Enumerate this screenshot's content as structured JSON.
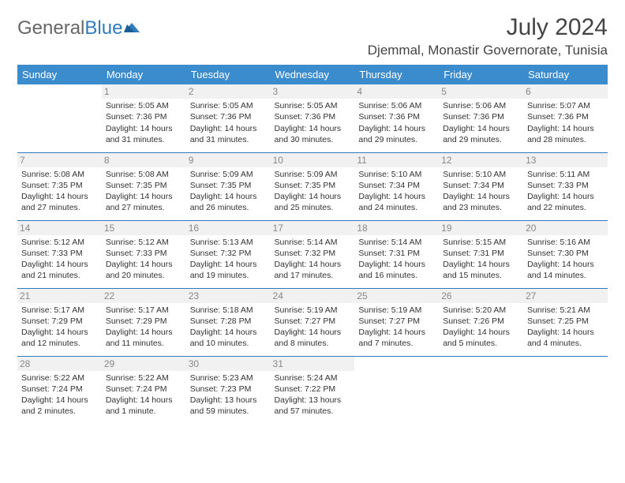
{
  "brand": {
    "part1": "General",
    "part2": "Blue"
  },
  "title": "July 2024",
  "location": "Djemmal, Monastir Governorate, Tunisia",
  "colors": {
    "header_bg": "#3b8ccc",
    "header_text": "#ffffff",
    "rule": "#2f7bbf",
    "daynum": "#888888",
    "body_text": "#333333",
    "logo_blue": "#2f7bbf",
    "logo_gray": "#666666"
  },
  "day_headers": [
    "Sunday",
    "Monday",
    "Tuesday",
    "Wednesday",
    "Thursday",
    "Friday",
    "Saturday"
  ],
  "weeks": [
    [
      {
        "n": "",
        "sr": "",
        "ss": "",
        "dl": ""
      },
      {
        "n": "1",
        "sr": "Sunrise: 5:05 AM",
        "ss": "Sunset: 7:36 PM",
        "dl": "Daylight: 14 hours and 31 minutes."
      },
      {
        "n": "2",
        "sr": "Sunrise: 5:05 AM",
        "ss": "Sunset: 7:36 PM",
        "dl": "Daylight: 14 hours and 31 minutes."
      },
      {
        "n": "3",
        "sr": "Sunrise: 5:05 AM",
        "ss": "Sunset: 7:36 PM",
        "dl": "Daylight: 14 hours and 30 minutes."
      },
      {
        "n": "4",
        "sr": "Sunrise: 5:06 AM",
        "ss": "Sunset: 7:36 PM",
        "dl": "Daylight: 14 hours and 29 minutes."
      },
      {
        "n": "5",
        "sr": "Sunrise: 5:06 AM",
        "ss": "Sunset: 7:36 PM",
        "dl": "Daylight: 14 hours and 29 minutes."
      },
      {
        "n": "6",
        "sr": "Sunrise: 5:07 AM",
        "ss": "Sunset: 7:36 PM",
        "dl": "Daylight: 14 hours and 28 minutes."
      }
    ],
    [
      {
        "n": "7",
        "sr": "Sunrise: 5:08 AM",
        "ss": "Sunset: 7:35 PM",
        "dl": "Daylight: 14 hours and 27 minutes."
      },
      {
        "n": "8",
        "sr": "Sunrise: 5:08 AM",
        "ss": "Sunset: 7:35 PM",
        "dl": "Daylight: 14 hours and 27 minutes."
      },
      {
        "n": "9",
        "sr": "Sunrise: 5:09 AM",
        "ss": "Sunset: 7:35 PM",
        "dl": "Daylight: 14 hours and 26 minutes."
      },
      {
        "n": "10",
        "sr": "Sunrise: 5:09 AM",
        "ss": "Sunset: 7:35 PM",
        "dl": "Daylight: 14 hours and 25 minutes."
      },
      {
        "n": "11",
        "sr": "Sunrise: 5:10 AM",
        "ss": "Sunset: 7:34 PM",
        "dl": "Daylight: 14 hours and 24 minutes."
      },
      {
        "n": "12",
        "sr": "Sunrise: 5:10 AM",
        "ss": "Sunset: 7:34 PM",
        "dl": "Daylight: 14 hours and 23 minutes."
      },
      {
        "n": "13",
        "sr": "Sunrise: 5:11 AM",
        "ss": "Sunset: 7:33 PM",
        "dl": "Daylight: 14 hours and 22 minutes."
      }
    ],
    [
      {
        "n": "14",
        "sr": "Sunrise: 5:12 AM",
        "ss": "Sunset: 7:33 PM",
        "dl": "Daylight: 14 hours and 21 minutes."
      },
      {
        "n": "15",
        "sr": "Sunrise: 5:12 AM",
        "ss": "Sunset: 7:33 PM",
        "dl": "Daylight: 14 hours and 20 minutes."
      },
      {
        "n": "16",
        "sr": "Sunrise: 5:13 AM",
        "ss": "Sunset: 7:32 PM",
        "dl": "Daylight: 14 hours and 19 minutes."
      },
      {
        "n": "17",
        "sr": "Sunrise: 5:14 AM",
        "ss": "Sunset: 7:32 PM",
        "dl": "Daylight: 14 hours and 17 minutes."
      },
      {
        "n": "18",
        "sr": "Sunrise: 5:14 AM",
        "ss": "Sunset: 7:31 PM",
        "dl": "Daylight: 14 hours and 16 minutes."
      },
      {
        "n": "19",
        "sr": "Sunrise: 5:15 AM",
        "ss": "Sunset: 7:31 PM",
        "dl": "Daylight: 14 hours and 15 minutes."
      },
      {
        "n": "20",
        "sr": "Sunrise: 5:16 AM",
        "ss": "Sunset: 7:30 PM",
        "dl": "Daylight: 14 hours and 14 minutes."
      }
    ],
    [
      {
        "n": "21",
        "sr": "Sunrise: 5:17 AM",
        "ss": "Sunset: 7:29 PM",
        "dl": "Daylight: 14 hours and 12 minutes."
      },
      {
        "n": "22",
        "sr": "Sunrise: 5:17 AM",
        "ss": "Sunset: 7:29 PM",
        "dl": "Daylight: 14 hours and 11 minutes."
      },
      {
        "n": "23",
        "sr": "Sunrise: 5:18 AM",
        "ss": "Sunset: 7:28 PM",
        "dl": "Daylight: 14 hours and 10 minutes."
      },
      {
        "n": "24",
        "sr": "Sunrise: 5:19 AM",
        "ss": "Sunset: 7:27 PM",
        "dl": "Daylight: 14 hours and 8 minutes."
      },
      {
        "n": "25",
        "sr": "Sunrise: 5:19 AM",
        "ss": "Sunset: 7:27 PM",
        "dl": "Daylight: 14 hours and 7 minutes."
      },
      {
        "n": "26",
        "sr": "Sunrise: 5:20 AM",
        "ss": "Sunset: 7:26 PM",
        "dl": "Daylight: 14 hours and 5 minutes."
      },
      {
        "n": "27",
        "sr": "Sunrise: 5:21 AM",
        "ss": "Sunset: 7:25 PM",
        "dl": "Daylight: 14 hours and 4 minutes."
      }
    ],
    [
      {
        "n": "28",
        "sr": "Sunrise: 5:22 AM",
        "ss": "Sunset: 7:24 PM",
        "dl": "Daylight: 14 hours and 2 minutes."
      },
      {
        "n": "29",
        "sr": "Sunrise: 5:22 AM",
        "ss": "Sunset: 7:24 PM",
        "dl": "Daylight: 14 hours and 1 minute."
      },
      {
        "n": "30",
        "sr": "Sunrise: 5:23 AM",
        "ss": "Sunset: 7:23 PM",
        "dl": "Daylight: 13 hours and 59 minutes."
      },
      {
        "n": "31",
        "sr": "Sunrise: 5:24 AM",
        "ss": "Sunset: 7:22 PM",
        "dl": "Daylight: 13 hours and 57 minutes."
      },
      {
        "n": "",
        "sr": "",
        "ss": "",
        "dl": ""
      },
      {
        "n": "",
        "sr": "",
        "ss": "",
        "dl": ""
      },
      {
        "n": "",
        "sr": "",
        "ss": "",
        "dl": ""
      }
    ]
  ]
}
